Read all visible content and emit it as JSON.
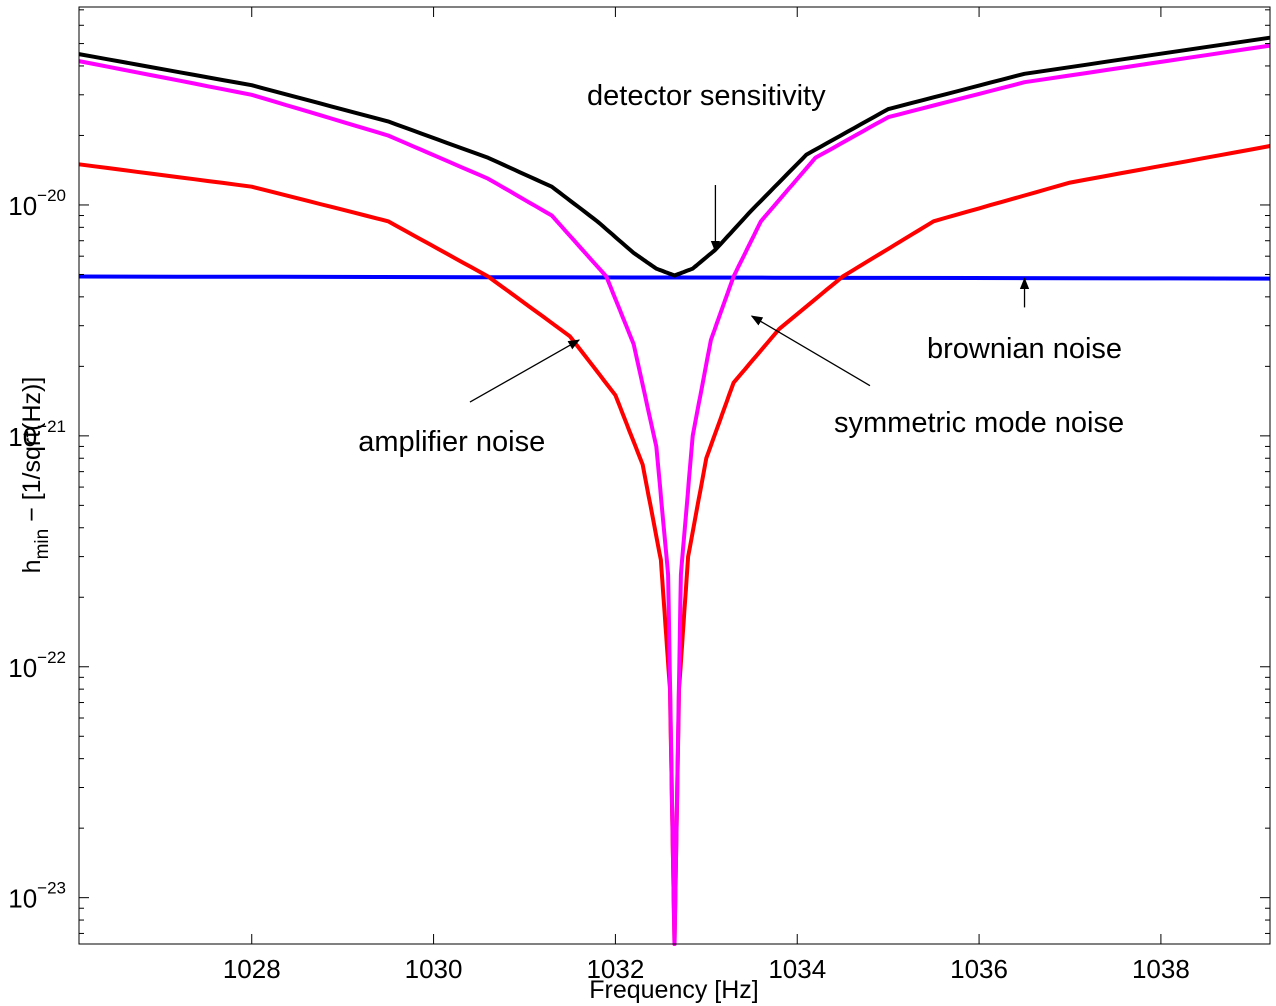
{
  "chart_data": {
    "type": "line",
    "xlabel": "Frequency [Hz]",
    "ylabel": "h_min − [1/sqrt(Hz)]",
    "ylabel_main": "h",
    "ylabel_sub": "min",
    "ylabel_rest": "  − [1/sqrt(Hz)]",
    "xlim": [
      1026.1,
      1039.2
    ],
    "ylim": [
      6.3e-24,
      7.2e-20
    ],
    "yscale": "log",
    "grid": false,
    "x_ticks": [
      1028,
      1030,
      1032,
      1034,
      1036,
      1038
    ],
    "x_tick_labels": [
      "1028",
      "1030",
      "1032",
      "1034",
      "1036",
      "1038"
    ],
    "y_ticks": [
      {
        "value": 1e-20,
        "base": "10",
        "exp": "−20"
      },
      {
        "value": 1e-21,
        "base": "10",
        "exp": "−21"
      },
      {
        "value": 1e-22,
        "base": "10",
        "exp": "−22"
      },
      {
        "value": 1e-23,
        "base": "10",
        "exp": "−23"
      }
    ],
    "series": [
      {
        "key": "brownian",
        "color": "#0000ff",
        "x": [
          1026.1,
          1039.2
        ],
        "y": [
          4.9e-21,
          4.8e-21
        ]
      },
      {
        "key": "amplifier",
        "color": "#ff0000",
        "x": [
          1026.1,
          1028,
          1029.5,
          1030.6,
          1031.5,
          1032,
          1032.3,
          1032.5,
          1032.6,
          1032.65,
          1032.7,
          1032.8,
          1033,
          1033.3,
          1033.8,
          1034.5,
          1035.5,
          1037,
          1039.2
        ],
        "y": [
          1.5e-20,
          1.2e-20,
          8.5e-21,
          4.9e-21,
          2.7e-21,
          1.5e-21,
          7.5e-22,
          2.9e-22,
          8e-23,
          6.3e-24,
          8e-23,
          3e-22,
          8e-22,
          1.7e-21,
          2.9e-21,
          4.9e-21,
          8.5e-21,
          1.25e-20,
          1.8e-20
        ]
      },
      {
        "key": "symmetric",
        "color": "#ff00ff",
        "x": [
          1026.1,
          1028,
          1029.5,
          1030.6,
          1031.3,
          1031.9,
          1032.2,
          1032.45,
          1032.58,
          1032.65,
          1032.72,
          1032.85,
          1033.05,
          1033.3,
          1033.6,
          1034.2,
          1035,
          1036.5,
          1039.2
        ],
        "y": [
          4.2e-20,
          3e-20,
          2e-20,
          1.3e-20,
          9e-21,
          4.9e-21,
          2.5e-21,
          9e-22,
          2.5e-22,
          6.3e-24,
          2.5e-22,
          1e-21,
          2.6e-21,
          4.9e-21,
          8.5e-21,
          1.6e-20,
          2.4e-20,
          3.4e-20,
          4.9e-20
        ]
      },
      {
        "key": "detector",
        "color": "#000000",
        "x": [
          1026.1,
          1028,
          1029.5,
          1030.6,
          1031.3,
          1031.8,
          1032.2,
          1032.45,
          1032.65,
          1032.85,
          1033.1,
          1033.5,
          1034.1,
          1035,
          1036.5,
          1039.2
        ],
        "y": [
          4.5e-20,
          3.3e-20,
          2.3e-20,
          1.6e-20,
          1.2e-20,
          8.5e-21,
          6.2e-21,
          5.3e-21,
          4.95e-21,
          5.3e-21,
          6.4e-21,
          9.5e-21,
          1.65e-20,
          2.6e-20,
          3.7e-20,
          5.3e-20
        ]
      }
    ],
    "annotations": [
      {
        "key": "detector",
        "text": "detector sensitivity",
        "text_x": 1033.0,
        "text_y": 3e-20,
        "arrow_from": [
          1033.1,
          1.22e-20
        ],
        "arrow_to": [
          1033.1,
          6.3e-21
        ]
      },
      {
        "key": "brownian",
        "text": "brownian noise",
        "text_x": 1036.5,
        "text_y": 2.4e-21,
        "arrow_from": [
          1036.5,
          3.6e-21
        ],
        "arrow_to": [
          1036.5,
          4.8e-21
        ]
      },
      {
        "key": "symmetric",
        "text": "symmetric mode noise",
        "text_x": 1036.0,
        "text_y": 1.15e-21,
        "arrow_from": [
          1034.8,
          1.65e-21
        ],
        "arrow_to": [
          1033.5,
          3.3e-21
        ]
      },
      {
        "key": "amplifier",
        "text": "amplifier noise",
        "text_x": 1030.2,
        "text_y": 9.5e-22,
        "arrow_from": [
          1030.4,
          1.4e-21
        ],
        "arrow_to": [
          1031.6,
          2.6e-21
        ]
      }
    ]
  }
}
